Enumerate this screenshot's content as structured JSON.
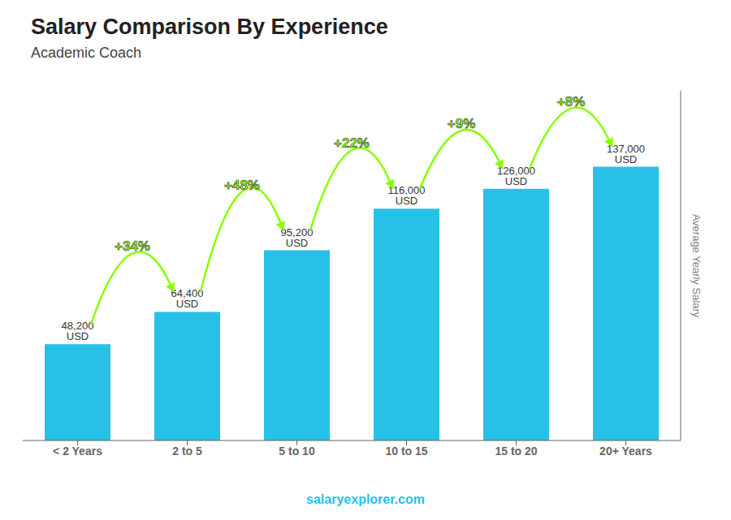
{
  "chart_data": {
    "type": "bar",
    "title": "Salary Comparison By Experience",
    "subtitle": "Academic Coach",
    "ylabel": "Average Yearly Salary",
    "categories": [
      "< 2 Years",
      "2 to 5",
      "5 to 10",
      "10 to 15",
      "15 to 20",
      "20+ Years"
    ],
    "values": [
      48200,
      64400,
      95200,
      116000,
      126000,
      137000
    ],
    "value_labels": [
      "48,200 USD",
      "64,400 USD",
      "95,200 USD",
      "116,000 USD",
      "126,000 USD",
      "137,000 USD"
    ],
    "data_labels": true,
    "color": "#27c1e8",
    "ylim": [
      0,
      175000
    ],
    "grid": false,
    "tick_labels": "x",
    "annotations": [
      {
        "text": "+34%",
        "from": "< 2 Years",
        "to": "2 to 5",
        "color": "#88ff00"
      },
      {
        "text": "+48%",
        "from": "2 to 5",
        "to": "5 to 10",
        "color": "#88ff00"
      },
      {
        "text": "+22%",
        "from": "5 to 10",
        "to": "10 to 15",
        "color": "#88ff00"
      },
      {
        "text": "+9%",
        "from": "10 to 15",
        "to": "15 to 20",
        "color": "#88ff00"
      },
      {
        "text": "+8%",
        "from": "15 to 20",
        "to": "20+ Years",
        "color": "#88ff00"
      },
      {
        "text": "salaryexplorer.com"
      }
    ]
  }
}
